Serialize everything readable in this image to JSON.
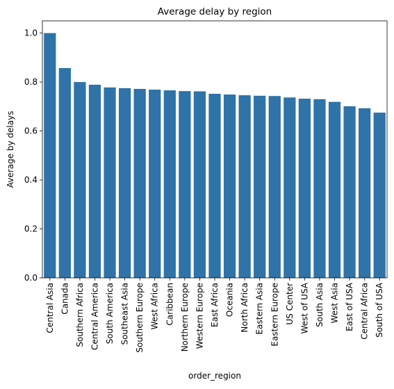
{
  "chart_data": {
    "type": "bar",
    "title": "Average delay by region",
    "xlabel": "order_region",
    "ylabel": "Average by delays",
    "categories": [
      "Central Asia",
      "Canada",
      "Southern Africa",
      "Central America",
      "South America",
      "Southeast Asia",
      "Southern Europe",
      "West Africa",
      "Caribbean",
      "Northern Europe",
      "Western Europe",
      "East Africa",
      "Oceania",
      "North Africa",
      "Eastern Asia",
      "Eastern Europe",
      "US Center",
      "West of USA",
      "South Asia",
      "West Asia",
      "East of USA",
      "Central Africa",
      "South of  USA"
    ],
    "values": [
      1.0,
      0.857,
      0.8,
      0.789,
      0.778,
      0.775,
      0.772,
      0.769,
      0.766,
      0.763,
      0.762,
      0.752,
      0.749,
      0.746,
      0.744,
      0.743,
      0.737,
      0.732,
      0.73,
      0.719,
      0.701,
      0.693,
      0.675
    ],
    "ylim": [
      0,
      1.05
    ],
    "yticks": [
      "0.0",
      "0.2",
      "0.4",
      "0.6",
      "0.8",
      "1.0"
    ],
    "bar_color": "#2f73a8",
    "grid": false,
    "legend": false
  }
}
